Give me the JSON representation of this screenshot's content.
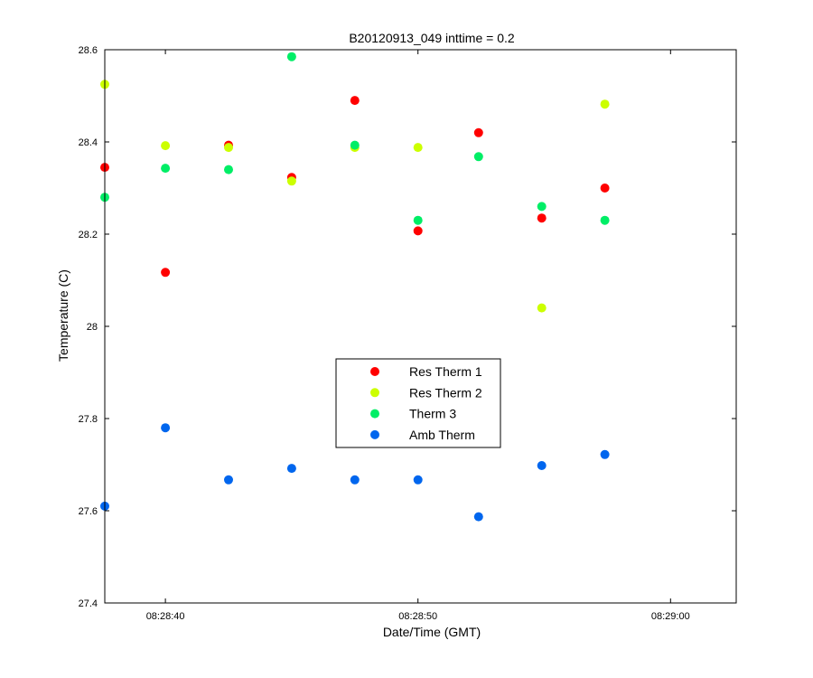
{
  "chart_data": {
    "type": "scatter",
    "title": "B20120913_049 inttime = 0.2",
    "xlabel": "Date/Time (GMT)",
    "ylabel": "Temperature (C)",
    "xlim": [
      "08:28:37.6",
      "08:29:02.6"
    ],
    "ylim": [
      27.4,
      28.6
    ],
    "xticks": [
      "08:28:40",
      "08:28:50",
      "08:29:00"
    ],
    "yticks": [
      "27.4",
      "27.6",
      "27.8",
      "28",
      "28.2",
      "28.4",
      "28.6"
    ],
    "grid": false,
    "legend_position": "center",
    "series": [
      {
        "name": "Res Therm 1",
        "color": "#ff0000",
        "x": [
          "08:28:37.6",
          "08:28:40.0",
          "08:28:42.5",
          "08:28:45.0",
          "08:28:47.5",
          "08:28:50.0",
          "08:28:52.4",
          "08:28:54.9",
          "08:28:57.4"
        ],
        "y": [
          28.345,
          28.117,
          28.393,
          28.323,
          28.49,
          28.207,
          28.42,
          28.235,
          28.3
        ]
      },
      {
        "name": "Res Therm 2",
        "color": "#ccff00",
        "x": [
          "08:28:37.6",
          "08:28:40.0",
          "08:28:42.5",
          "08:28:45.0",
          "08:28:47.5",
          "08:28:50.0",
          "08:28:54.9",
          "08:28:57.4"
        ],
        "y": [
          28.525,
          28.392,
          28.388,
          28.315,
          28.388,
          28.388,
          28.04,
          28.482
        ]
      },
      {
        "name": "Therm 3",
        "color": "#00ee66",
        "x": [
          "08:28:37.6",
          "08:28:40.0",
          "08:28:42.5",
          "08:28:45.0",
          "08:28:47.5",
          "08:28:50.0",
          "08:28:52.4",
          "08:28:54.9",
          "08:28:57.4"
        ],
        "y": [
          28.28,
          28.343,
          28.34,
          28.585,
          28.393,
          28.23,
          28.368,
          28.26,
          28.23
        ]
      },
      {
        "name": "Amb Therm",
        "color": "#0066ee",
        "x": [
          "08:28:37.6",
          "08:28:40.0",
          "08:28:42.5",
          "08:28:45.0",
          "08:28:47.5",
          "08:28:50.0",
          "08:28:52.4",
          "08:28:54.9",
          "08:28:57.4"
        ],
        "y": [
          27.61,
          27.78,
          27.667,
          27.692,
          27.667,
          27.667,
          27.587,
          27.698,
          27.722
        ]
      }
    ]
  }
}
